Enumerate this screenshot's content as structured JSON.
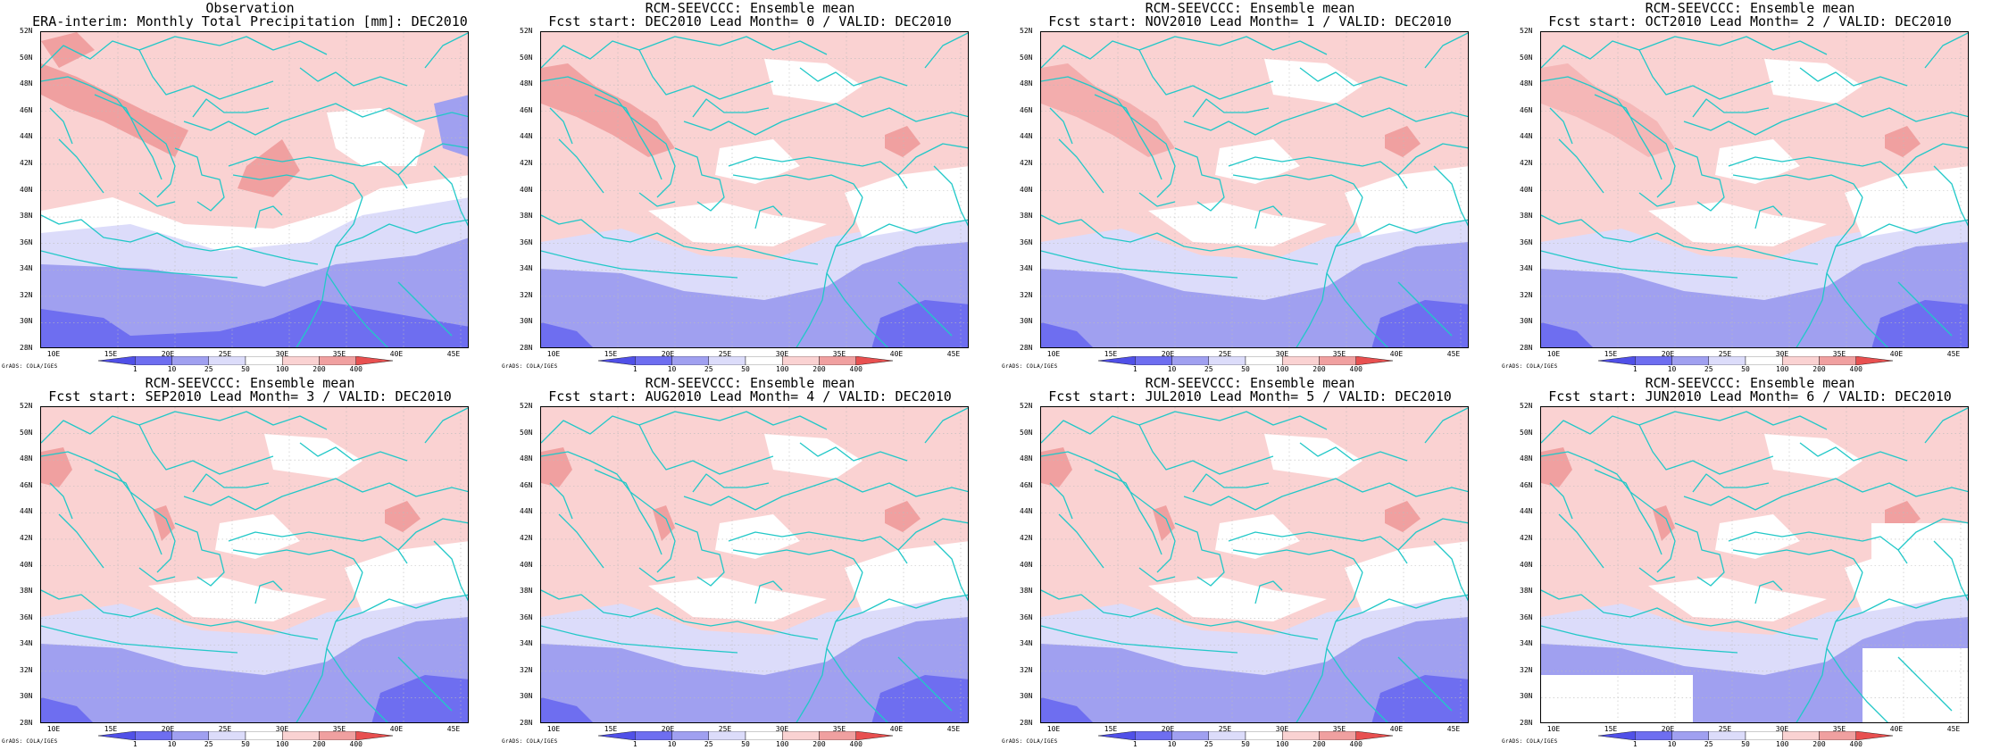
{
  "credit": "GrADS: COLA/IGES",
  "lat_labels": [
    "52N",
    "50N",
    "48N",
    "46N",
    "44N",
    "42N",
    "40N",
    "38N",
    "36N",
    "34N",
    "32N",
    "30N",
    "28N"
  ],
  "lon_labels": [
    "10E",
    "15E",
    "20E",
    "25E",
    "30E",
    "35E",
    "40E",
    "45E"
  ],
  "colorbar_labels": [
    "1",
    "10",
    "25",
    "50",
    "100",
    "200",
    "400"
  ],
  "colors": {
    "coast": "#22c8c8",
    "light_pink": "#fad2d2",
    "pink": "#f0a0a0",
    "red": "#e85050",
    "light_blue": "#dcdcfa",
    "blue": "#a0a0f0",
    "dark_blue": "#6e6ef0"
  },
  "panels": [
    {
      "title1": "Observation",
      "title2": "ERA-interim:  Monthly Total Precipitation [mm]: DEC2010"
    },
    {
      "title1": "RCM-SEEVCCC: Ensemble mean",
      "title2": "Fcst start: DEC2010  Lead Month= 0 / VALID: DEC2010"
    },
    {
      "title1": "RCM-SEEVCCC: Ensemble mean",
      "title2": "Fcst start: NOV2010  Lead Month= 1 / VALID: DEC2010"
    },
    {
      "title1": "RCM-SEEVCCC: Ensemble mean",
      "title2": "Fcst start: OCT2010  Lead Month= 2 / VALID: DEC2010"
    },
    {
      "title1": "RCM-SEEVCCC: Ensemble mean",
      "title2": "Fcst start: SEP2010  Lead Month= 3 / VALID: DEC2010"
    },
    {
      "title1": "RCM-SEEVCCC: Ensemble mean",
      "title2": "Fcst start: AUG2010  Lead Month= 4 / VALID: DEC2010"
    },
    {
      "title1": "RCM-SEEVCCC: Ensemble mean",
      "title2": "Fcst start: JUL2010  Lead Month= 5 / VALID: DEC2010"
    },
    {
      "title1": "RCM-SEEVCCC: Ensemble mean",
      "title2": "Fcst start: JUN2010  Lead Month= 6 / VALID: DEC2010"
    }
  ]
}
